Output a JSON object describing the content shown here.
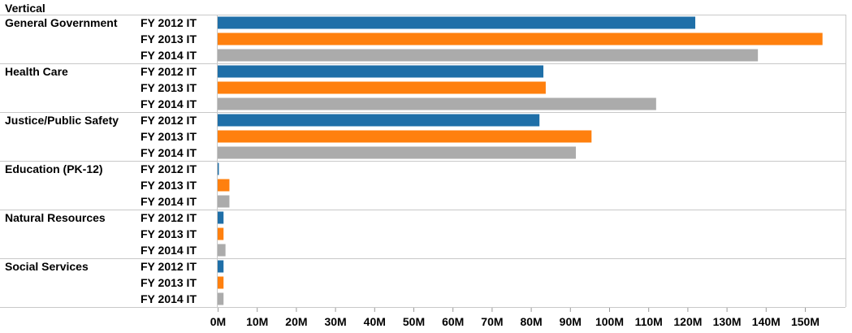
{
  "chart_data": {
    "type": "bar",
    "orientation": "horizontal",
    "header": "Vertical",
    "groups": [
      {
        "name": "General Government",
        "bars": [
          {
            "label": "FY 2012 IT",
            "value": 122
          },
          {
            "label": "FY 2013 IT",
            "value": 154.5
          },
          {
            "label": "FY 2014 IT",
            "value": 138
          }
        ]
      },
      {
        "name": "Health Care",
        "bars": [
          {
            "label": "FY 2012 IT",
            "value": 83.2
          },
          {
            "label": "FY 2013 IT",
            "value": 83.8
          },
          {
            "label": "FY 2014 IT",
            "value": 112
          }
        ]
      },
      {
        "name": "Justice/Public Safety",
        "bars": [
          {
            "label": "FY 2012 IT",
            "value": 82.2
          },
          {
            "label": "FY 2013 IT",
            "value": 95.5
          },
          {
            "label": "FY 2014 IT",
            "value": 91.5
          }
        ]
      },
      {
        "name": "Education (PK-12)",
        "bars": [
          {
            "label": "FY 2012 IT",
            "value": 0.3
          },
          {
            "label": "FY 2013 IT",
            "value": 3.0
          },
          {
            "label": "FY 2014 IT",
            "value": 3.0
          }
        ]
      },
      {
        "name": "Natural Resources",
        "bars": [
          {
            "label": "FY 2012 IT",
            "value": 1.5
          },
          {
            "label": "FY 2013 IT",
            "value": 1.5
          },
          {
            "label": "FY 2014 IT",
            "value": 2.0
          }
        ]
      },
      {
        "name": "Social Services",
        "bars": [
          {
            "label": "FY 2012 IT",
            "value": 1.5
          },
          {
            "label": "FY 2013 IT",
            "value": 1.5
          },
          {
            "label": "FY 2014 IT",
            "value": 1.5
          }
        ]
      }
    ],
    "series_colors": {
      "FY 2012 IT": "#1f6fa8",
      "FY 2013 IT": "#ff800e",
      "FY 2014 IT": "#ababab"
    },
    "xlim": [
      0,
      160
    ],
    "x_ticks": [
      0,
      10,
      20,
      30,
      40,
      50,
      60,
      70,
      80,
      90,
      100,
      110,
      120,
      130,
      140,
      150
    ],
    "x_tick_labels": [
      "0M",
      "10M",
      "20M",
      "30M",
      "40M",
      "50M",
      "60M",
      "70M",
      "80M",
      "90M",
      "100M",
      "110M",
      "120M",
      "130M",
      "140M",
      "150M"
    ],
    "grid": false,
    "legend": "none"
  }
}
